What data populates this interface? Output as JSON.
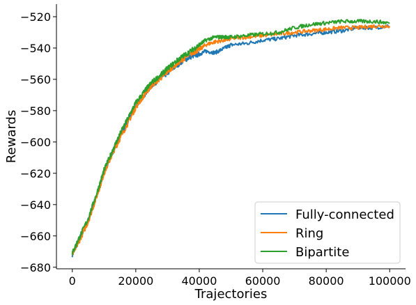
{
  "chart_data": {
    "type": "line",
    "title": "",
    "xlabel": "Trajectories",
    "ylabel": "Rewards",
    "xlim": [
      -5000,
      105000
    ],
    "ylim": [
      -681,
      -512
    ],
    "x_ticks": [
      0,
      20000,
      40000,
      60000,
      80000,
      100000
    ],
    "x_tick_labels": [
      "0",
      "20000",
      "40000",
      "60000",
      "80000",
      "100000"
    ],
    "y_ticks": [
      -520,
      -540,
      -560,
      -580,
      -600,
      -620,
      -640,
      -660,
      -680
    ],
    "y_tick_labels": [
      "−520",
      "−540",
      "−560",
      "−580",
      "−600",
      "−620",
      "−640",
      "−660",
      "−680"
    ],
    "grid": false,
    "legend_position": "bottom-right",
    "series": [
      {
        "name": "Fully-connected",
        "color": "#1f77b4",
        "x": [
          0,
          2000,
          5000,
          8000,
          10000,
          13000,
          15000,
          18000,
          20000,
          23000,
          25000,
          28000,
          30000,
          33000,
          35000,
          38000,
          40000,
          42000,
          45000,
          48000,
          50000,
          55000,
          60000,
          65000,
          70000,
          75000,
          80000,
          85000,
          90000,
          95000,
          100000
        ],
        "values": [
          -672,
          -663,
          -650,
          -632,
          -619,
          -605,
          -597,
          -585,
          -577,
          -569,
          -564,
          -559,
          -556,
          -551,
          -548,
          -545,
          -544,
          -542,
          -543,
          -540,
          -538,
          -537,
          -535,
          -534,
          -532,
          -531,
          -530,
          -529,
          -527,
          -527,
          -526
        ]
      },
      {
        "name": "Ring",
        "color": "#ff7f0e",
        "x": [
          0,
          2000,
          5000,
          8000,
          10000,
          13000,
          15000,
          18000,
          20000,
          23000,
          25000,
          28000,
          30000,
          33000,
          35000,
          38000,
          40000,
          42000,
          45000,
          48000,
          50000,
          55000,
          60000,
          65000,
          70000,
          75000,
          80000,
          85000,
          90000,
          95000,
          100000
        ],
        "values": [
          -672,
          -664,
          -651,
          -633,
          -620,
          -606,
          -598,
          -586,
          -578,
          -569,
          -564,
          -559,
          -555,
          -550,
          -547,
          -543,
          -541,
          -538,
          -536,
          -535,
          -534,
          -533,
          -532,
          -531,
          -530,
          -529,
          -528,
          -527,
          -527,
          -526,
          -526
        ]
      },
      {
        "name": "Bipartite",
        "color": "#2ca02c",
        "x": [
          0,
          2000,
          5000,
          8000,
          10000,
          13000,
          15000,
          18000,
          20000,
          23000,
          25000,
          28000,
          30000,
          33000,
          35000,
          38000,
          40000,
          42000,
          45000,
          48000,
          50000,
          55000,
          60000,
          65000,
          70000,
          75000,
          80000,
          85000,
          90000,
          95000,
          100000
        ],
        "values": [
          -671,
          -662,
          -649,
          -631,
          -618,
          -604,
          -595,
          -583,
          -575,
          -567,
          -562,
          -557,
          -553,
          -548,
          -545,
          -541,
          -538,
          -535,
          -533,
          -533,
          -533,
          -532,
          -531,
          -530,
          -527,
          -525,
          -524,
          -523,
          -523,
          -523,
          -524
        ]
      }
    ]
  }
}
